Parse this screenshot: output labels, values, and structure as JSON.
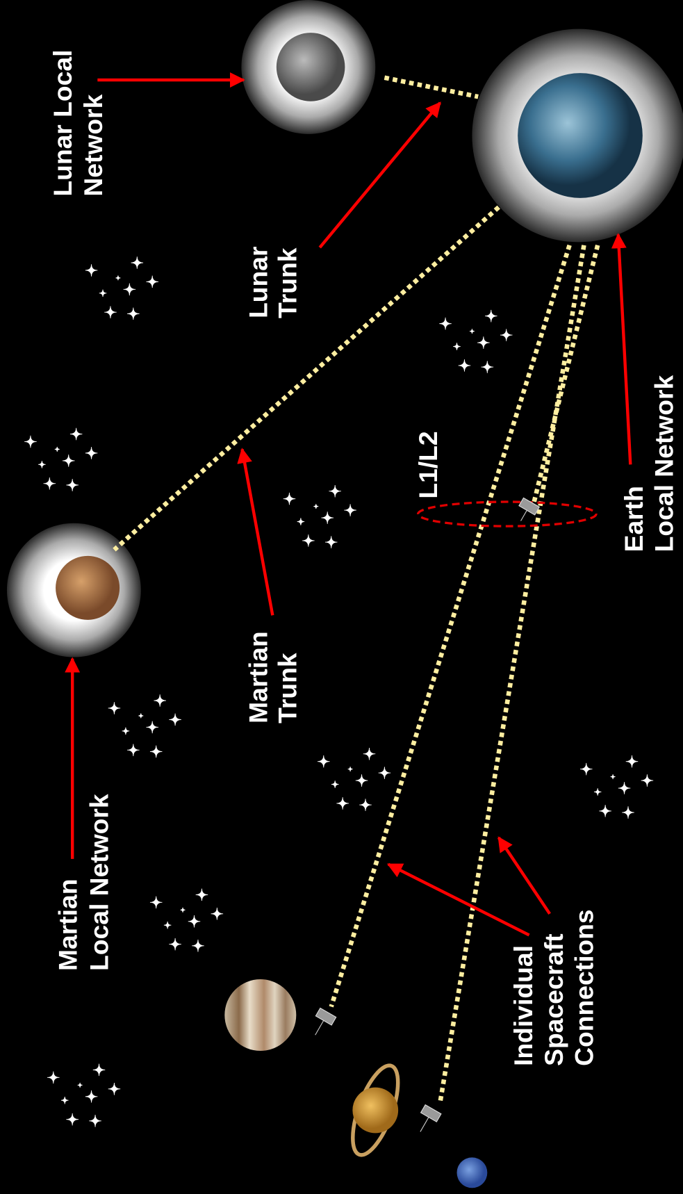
{
  "labels": {
    "lunar_local_network": [
      "Lunar Local",
      "Network"
    ],
    "lunar_trunk": [
      "Lunar",
      "Trunk"
    ],
    "martian_trunk": [
      "Martian",
      "Trunk"
    ],
    "martian_local_network": [
      "Martian",
      "Local Network"
    ],
    "l1_l2": [
      "L1/L2"
    ],
    "earth_local_network": [
      "Earth",
      "Local Network"
    ],
    "individual_spacecraft_connections": [
      "Individual",
      "Spacecraft",
      "Connections"
    ]
  }
}
